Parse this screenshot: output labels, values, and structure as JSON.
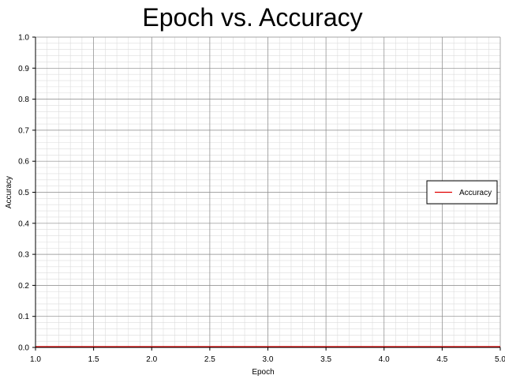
{
  "chart_data": {
    "type": "line",
    "title": "Epoch vs. Accuracy",
    "xlabel": "Epoch",
    "ylabel": "Accuracy",
    "xlim": [
      1.0,
      5.0
    ],
    "ylim": [
      0.0,
      1.0
    ],
    "x_ticks": [
      "1.0",
      "1.5",
      "2.0",
      "2.5",
      "3.0",
      "3.5",
      "4.0",
      "4.5",
      "5.0"
    ],
    "y_ticks": [
      "0.0",
      "0.1",
      "0.2",
      "0.3",
      "0.4",
      "0.5",
      "0.6",
      "0.7",
      "0.8",
      "0.9",
      "1.0"
    ],
    "grid": true,
    "legend_position": "right",
    "series": [
      {
        "name": "Accuracy",
        "color": "#e00000",
        "x": [
          1,
          2,
          3,
          4,
          5
        ],
        "y": [
          0,
          0,
          0,
          0,
          0
        ]
      }
    ]
  }
}
